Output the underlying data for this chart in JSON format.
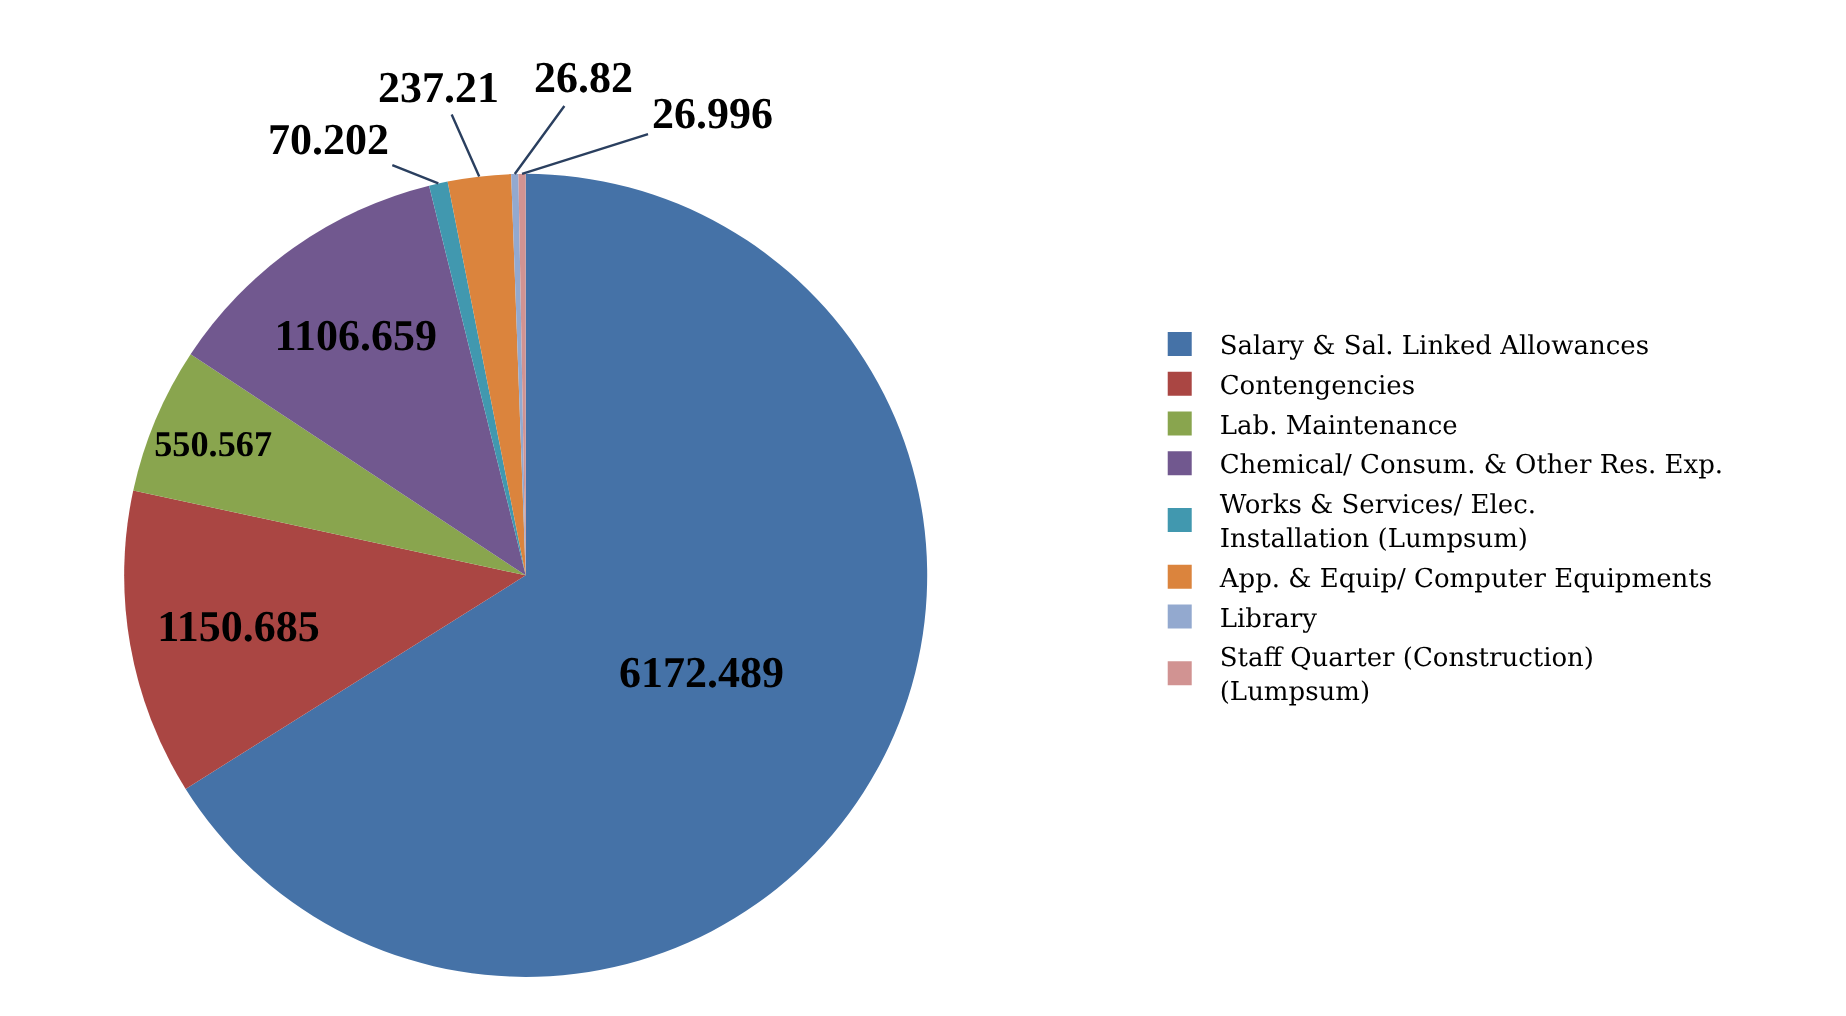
{
  "chart_data": {
    "type": "pie",
    "categories": [
      "Salary & Sal. Linked Allowances",
      "Contengencies",
      "Lab. Maintenance",
      "Chemical/ Consum. & Other Res. Exp.",
      "Works & Services/ Elec. Installation (Lumpsum)",
      "App. & Equip/ Computer Equipments",
      "Library",
      "Staff Quarter (Construction) (Lumpsum)"
    ],
    "values": [
      6172.489,
      1150.685,
      550.567,
      1106.659,
      70.202,
      237.21,
      26.82,
      26.996
    ],
    "colors": [
      "#4572a7",
      "#aa4643",
      "#89a54e",
      "#71588f",
      "#4198af",
      "#db843d",
      "#93a9cf",
      "#d19392"
    ],
    "data_labels": true,
    "legend": "right"
  }
}
